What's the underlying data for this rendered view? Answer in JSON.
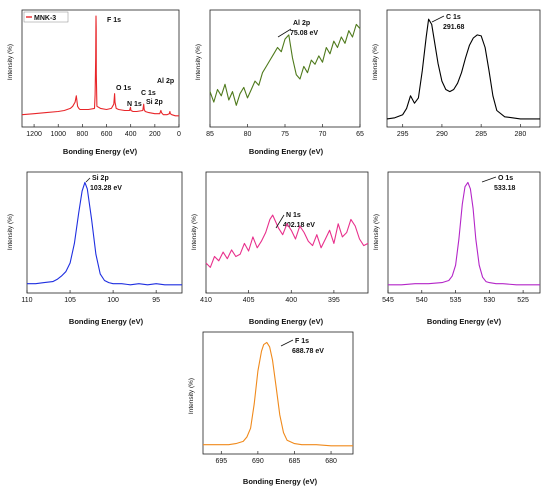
{
  "colors": {
    "survey": "#e8262a",
    "al2p": "#4f7a1c",
    "c1s": "#000000",
    "si2p": "#1f2fe0",
    "n1s": "#e8308c",
    "o1s": "#b426c8",
    "f1s": "#f08a1c"
  },
  "chart_data": [
    {
      "id": "survey",
      "type": "line",
      "xlabel": "Bonding Energy (eV)",
      "ylabel": "Intensity (%)",
      "xlim": [
        1300,
        0
      ],
      "ylim": [
        0,
        100
      ],
      "xticks": [
        "1200",
        "1000",
        "800",
        "600",
        "400",
        "200",
        "0"
      ],
      "legend": [
        "MNK-3"
      ],
      "legend_position": "top-left",
      "series": [
        {
          "name": "MNK-3",
          "x": [
            1300,
            1200,
            1100,
            1000,
            950,
            900,
            880,
            860,
            850,
            840,
            830,
            820,
            800,
            750,
            700,
            695,
            690,
            688,
            687,
            686,
            685,
            680,
            650,
            600,
            560,
            540,
            533,
            530,
            520,
            500,
            450,
            410,
            402,
            398,
            380,
            350,
            300,
            292,
            288,
            280,
            250,
            200,
            160,
            150,
            145,
            130,
            100,
            80,
            75,
            72,
            60,
            30,
            0
          ],
          "y": [
            6,
            7,
            8,
            9,
            10,
            12,
            14,
            18,
            24,
            14,
            12,
            11,
            11,
            11,
            12,
            25,
            60,
            90,
            100,
            88,
            45,
            14,
            12,
            11,
            12,
            16,
            26,
            18,
            12,
            11,
            10,
            10,
            13,
            10,
            9,
            9,
            10,
            16,
            11,
            9,
            8,
            7,
            7,
            10,
            8,
            6,
            6,
            7,
            9,
            7,
            6,
            5,
            5
          ]
        }
      ],
      "annotations": [
        "F 1s",
        "O 1s",
        "N 1s",
        "C 1s",
        "Si 2p",
        "Al 2p"
      ]
    },
    {
      "id": "al2p",
      "type": "line",
      "xlabel": "Bonding Energy (eV)",
      "ylabel": "Intensity (%)",
      "xlim": [
        85,
        65
      ],
      "ylim": [
        0,
        100
      ],
      "xticks": [
        "85",
        "80",
        "75",
        "70",
        "65"
      ],
      "series": [
        {
          "x": [
            85,
            84.5,
            84,
            83.5,
            83,
            82.5,
            82,
            81.5,
            81,
            80.5,
            80,
            79.5,
            79,
            78.5,
            78,
            77.5,
            77,
            76.5,
            76,
            75.5,
            75,
            74.5,
            74,
            73.5,
            73,
            72.5,
            72,
            71.5,
            71,
            70.5,
            70,
            69.5,
            69,
            68.5,
            68,
            67.5,
            67,
            66.5,
            66,
            65.5,
            65
          ],
          "y": [
            28,
            18,
            30,
            24,
            35,
            20,
            28,
            15,
            26,
            32,
            22,
            30,
            38,
            34,
            46,
            52,
            58,
            64,
            70,
            66,
            78,
            82,
            60,
            44,
            40,
            52,
            46,
            58,
            54,
            62,
            56,
            70,
            64,
            76,
            70,
            80,
            74,
            86,
            80,
            92,
            88
          ]
        }
      ],
      "annotations": [
        {
          "label": "Al 2p",
          "value": "75.08 eV"
        }
      ]
    },
    {
      "id": "c1s",
      "type": "line",
      "xlabel": "",
      "ylabel": "Intensity (%)",
      "xlim": [
        297,
        277.5
      ],
      "ylim": [
        0,
        100
      ],
      "xticks": [
        "295",
        "290",
        "285",
        "280"
      ],
      "series": [
        {
          "x": [
            297,
            296,
            295,
            294.5,
            294,
            293.5,
            293,
            292.5,
            292,
            291.7,
            291.3,
            291,
            290.5,
            290,
            289.5,
            289,
            288.5,
            288,
            287.5,
            287,
            286.5,
            286,
            285.5,
            285,
            284.5,
            284,
            283.5,
            283,
            282,
            281,
            280,
            279,
            278,
            277.5
          ],
          "y": [
            2,
            3,
            6,
            12,
            24,
            17,
            22,
            48,
            80,
            97,
            92,
            78,
            55,
            38,
            30,
            28,
            30,
            36,
            46,
            60,
            72,
            79,
            82,
            81,
            70,
            48,
            24,
            10,
            4,
            3,
            2,
            2,
            2,
            2
          ]
        }
      ],
      "annotations": [
        {
          "label": "C 1s",
          "value": "291.68"
        }
      ]
    },
    {
      "id": "si2p",
      "type": "line",
      "xlabel": "Bonding Energy (eV)",
      "ylabel": "Intensity (%)",
      "xlim": [
        110,
        92
      ],
      "ylim": [
        0,
        100
      ],
      "xticks": [
        "110",
        "105",
        "100",
        "95"
      ],
      "series": [
        {
          "x": [
            110,
            109,
            108,
            107,
            106.5,
            106,
            105.5,
            105,
            104.5,
            104,
            103.6,
            103.28,
            103,
            102.5,
            102,
            101.5,
            101,
            100.5,
            100,
            99,
            98,
            97,
            96,
            95,
            94,
            93,
            92
          ],
          "y": [
            3,
            3,
            4,
            5,
            7,
            10,
            14,
            22,
            40,
            68,
            88,
            96,
            90,
            62,
            30,
            12,
            6,
            4,
            3,
            3,
            2,
            3,
            2,
            3,
            2,
            2,
            2
          ]
        }
      ],
      "annotations": [
        {
          "label": "Si 2p",
          "value": "103.28 eV"
        }
      ]
    },
    {
      "id": "n1s",
      "type": "line",
      "xlabel": "Bonding Energy (eV)",
      "ylabel": "Intensity (%)",
      "xlim": [
        410,
        391
      ],
      "ylim": [
        0,
        100
      ],
      "xticks": [
        "410",
        "405",
        "400",
        "395"
      ],
      "series": [
        {
          "x": [
            410,
            409.5,
            409,
            408.5,
            408,
            407.5,
            407,
            406.5,
            406,
            405.5,
            405,
            404.5,
            404,
            403.5,
            403,
            402.5,
            402.18,
            401.5,
            401,
            400.5,
            400,
            399.5,
            399,
            398.5,
            398,
            397.5,
            397,
            396.5,
            396,
            395.5,
            395,
            394.5,
            394,
            393.5,
            393,
            392.5,
            392,
            391.5,
            391
          ],
          "y": [
            22,
            18,
            28,
            24,
            32,
            26,
            34,
            28,
            30,
            40,
            33,
            46,
            36,
            42,
            50,
            62,
            66,
            54,
            48,
            58,
            52,
            44,
            56,
            50,
            42,
            38,
            48,
            36,
            44,
            52,
            40,
            58,
            46,
            50,
            62,
            56,
            44,
            38,
            40
          ]
        }
      ],
      "annotations": [
        {
          "label": "N 1s",
          "value": "402.18 eV"
        }
      ]
    },
    {
      "id": "o1s",
      "type": "line",
      "xlabel": "Bonding Energy (eV)",
      "ylabel": "Intensity (%)",
      "xlim": [
        545,
        522.5
      ],
      "ylim": [
        0,
        100
      ],
      "xticks": [
        "545",
        "540",
        "535",
        "530",
        "525"
      ],
      "series": [
        {
          "x": [
            545,
            543,
            541,
            539,
            537,
            536,
            535.5,
            535,
            534.5,
            534,
            533.6,
            533.18,
            532.8,
            532.4,
            532,
            531.5,
            531,
            530.5,
            530,
            529,
            528,
            526,
            524,
            522.5
          ],
          "y": [
            2,
            2,
            3,
            3,
            4,
            6,
            10,
            20,
            44,
            76,
            92,
            96,
            90,
            72,
            44,
            20,
            9,
            5,
            4,
            3,
            3,
            2,
            2,
            2
          ]
        }
      ],
      "annotations": [
        {
          "label": "O 1s",
          "value": "533.18"
        }
      ]
    },
    {
      "id": "f1s",
      "type": "line",
      "xlabel": "Bonding Energy (eV)",
      "ylabel": "Intensity (%)",
      "xlim": [
        697.5,
        677
      ],
      "ylim": [
        0,
        100
      ],
      "xticks": [
        "695",
        "690",
        "685",
        "680"
      ],
      "series": [
        {
          "x": [
            697.5,
            696,
            694,
            693,
            692,
            691.5,
            691,
            690.5,
            690,
            689.5,
            689.2,
            688.78,
            688.4,
            688,
            687.5,
            687,
            686.5,
            686,
            685,
            684,
            682,
            680,
            678,
            677
          ],
          "y": [
            3,
            3,
            3,
            4,
            6,
            10,
            18,
            40,
            70,
            88,
            94,
            96,
            92,
            80,
            55,
            30,
            14,
            7,
            4,
            3,
            3,
            2,
            2,
            2
          ]
        }
      ],
      "annotations": [
        {
          "label": "F 1s",
          "value": "688.78 eV"
        }
      ]
    }
  ]
}
